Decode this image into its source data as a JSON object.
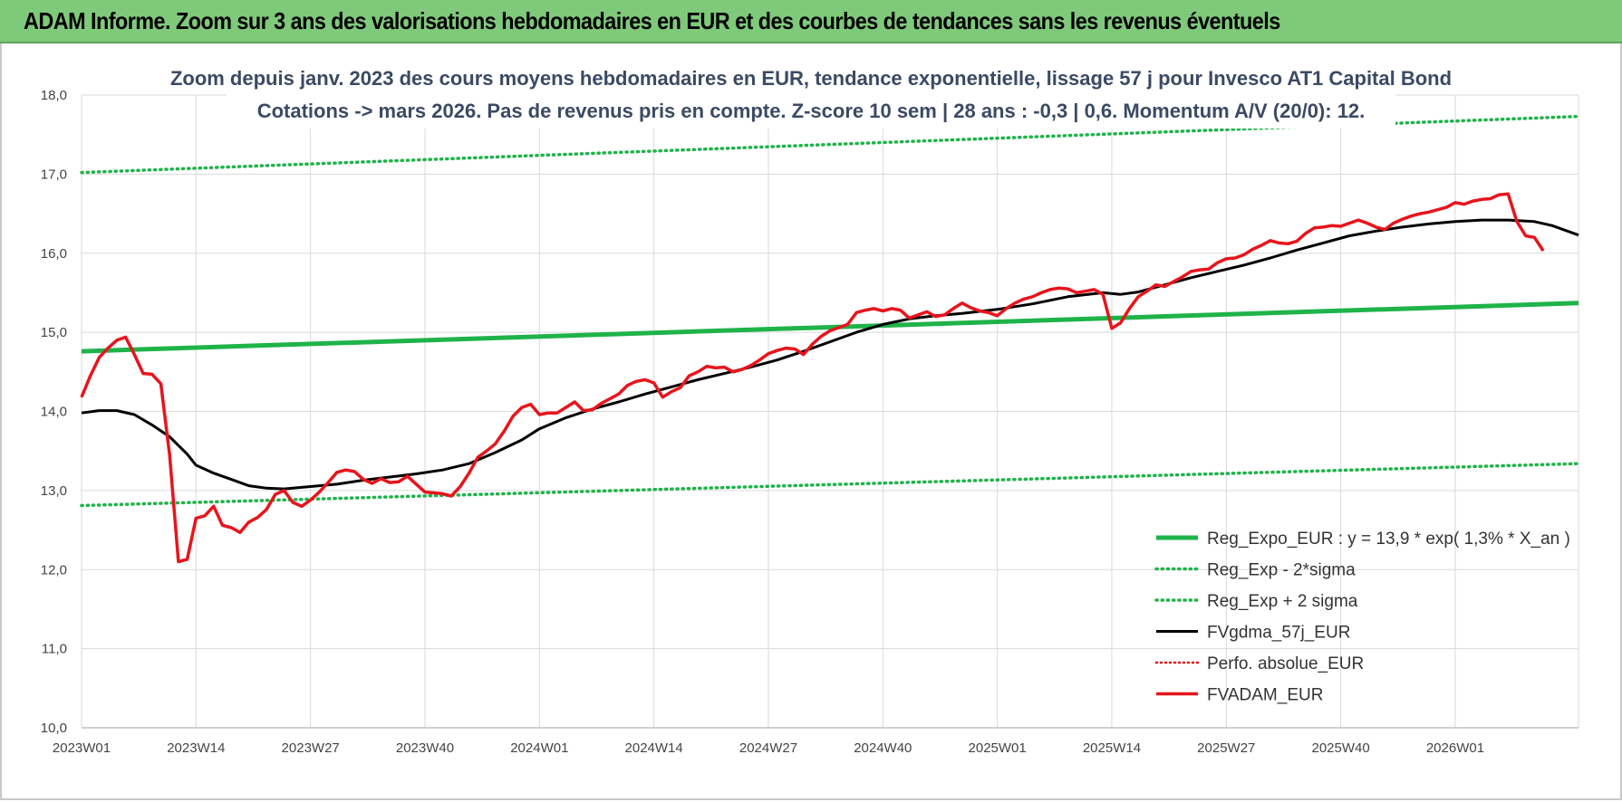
{
  "banner": {
    "title": "ADAM Informe. Zoom sur 3 ans des valorisations hebdomadaires en EUR et des courbes de tendances sans les revenus éventuels"
  },
  "colors": {
    "banner": "#7fc97a",
    "reg": "#1fb34a",
    "sigma": "#1fb34a",
    "gdma": "#000000",
    "perfo": "#e01010",
    "fvadam": "#e8141c"
  },
  "chart_data": {
    "type": "line",
    "title_line1": "Zoom depuis janv. 2023 des cours moyens hebdomadaires en EUR, tendance exponentielle, lissage 57 j pour Invesco AT1 Capital Bond",
    "title_line2": "Cotations -> mars 2026. Pas de revenus pris en compte. Z-score 10 sem | 28 ans : -0,3 | 0,6. Momentum A/V (20/0): 12.",
    "ylim": [
      10,
      18
    ],
    "yticks": [
      "10,0",
      "11,0",
      "12,0",
      "13,0",
      "14,0",
      "15,0",
      "16,0",
      "17,0",
      "18,0"
    ],
    "x_tick_labels": [
      "2023W01",
      "2023W14",
      "2023W27",
      "2023W40",
      "2024W01",
      "2024W14",
      "2024W27",
      "2024W40",
      "2025W01",
      "2025W14",
      "2025W27",
      "2025W40",
      "2026W01"
    ],
    "x_tick_index": [
      0,
      13,
      26,
      39,
      52,
      65,
      78,
      91,
      104,
      117,
      130,
      143,
      156
    ],
    "n_weeks": 171,
    "legend_position": "bottom-right",
    "series": [
      {
        "name": "Reg_Expo_EUR : y = 13,9 * exp( 1,3% *  X_an )",
        "style": "reg",
        "points": [
          [
            0,
            14.76
          ],
          [
            170,
            15.37
          ]
        ]
      },
      {
        "name": "Reg_Exp - 2*sigma",
        "style": "sigma",
        "points": [
          [
            0,
            12.81
          ],
          [
            170,
            13.34
          ]
        ]
      },
      {
        "name": "Reg_Exp + 2 sigma",
        "style": "sigma",
        "points": [
          [
            0,
            17.02
          ],
          [
            170,
            17.73
          ]
        ]
      },
      {
        "name": "FVgdma_57j_EUR",
        "style": "gdma",
        "points": [
          [
            0,
            13.98
          ],
          [
            2,
            14.01
          ],
          [
            4,
            14.01
          ],
          [
            6,
            13.96
          ],
          [
            8,
            13.83
          ],
          [
            10,
            13.68
          ],
          [
            12,
            13.46
          ],
          [
            13,
            13.32
          ],
          [
            15,
            13.22
          ],
          [
            17,
            13.14
          ],
          [
            19,
            13.06
          ],
          [
            21,
            13.03
          ],
          [
            23,
            13.02
          ],
          [
            26,
            13.05
          ],
          [
            29,
            13.08
          ],
          [
            32,
            13.13
          ],
          [
            35,
            13.17
          ],
          [
            38,
            13.21
          ],
          [
            41,
            13.26
          ],
          [
            44,
            13.34
          ],
          [
            47,
            13.48
          ],
          [
            50,
            13.64
          ],
          [
            52,
            13.78
          ],
          [
            55,
            13.92
          ],
          [
            58,
            14.03
          ],
          [
            61,
            14.12
          ],
          [
            64,
            14.22
          ],
          [
            67,
            14.31
          ],
          [
            70,
            14.4
          ],
          [
            73,
            14.48
          ],
          [
            76,
            14.56
          ],
          [
            79,
            14.65
          ],
          [
            82,
            14.76
          ],
          [
            85,
            14.88
          ],
          [
            88,
            15.0
          ],
          [
            91,
            15.1
          ],
          [
            94,
            15.17
          ],
          [
            97,
            15.21
          ],
          [
            100,
            15.24
          ],
          [
            104,
            15.29
          ],
          [
            108,
            15.36
          ],
          [
            112,
            15.45
          ],
          [
            116,
            15.5
          ],
          [
            118,
            15.48
          ],
          [
            120,
            15.51
          ],
          [
            123,
            15.6
          ],
          [
            126,
            15.69
          ],
          [
            129,
            15.77
          ],
          [
            132,
            15.85
          ],
          [
            135,
            15.94
          ],
          [
            138,
            16.04
          ],
          [
            141,
            16.13
          ],
          [
            144,
            16.22
          ],
          [
            147,
            16.28
          ],
          [
            150,
            16.33
          ],
          [
            153,
            16.37
          ],
          [
            156,
            16.4
          ],
          [
            159,
            16.42
          ],
          [
            162,
            16.42
          ],
          [
            165,
            16.4
          ],
          [
            167,
            16.35
          ],
          [
            170,
            16.23
          ]
        ]
      },
      {
        "name": "Perfo. absolue_EUR",
        "style": "perfo",
        "points": []
      },
      {
        "name": "FVADAM_EUR",
        "style": "fvadam",
        "points": [
          [
            0,
            14.18
          ],
          [
            1,
            14.45
          ],
          [
            2,
            14.68
          ],
          [
            3,
            14.8
          ],
          [
            4,
            14.9
          ],
          [
            5,
            14.94
          ],
          [
            6,
            14.72
          ],
          [
            7,
            14.48
          ],
          [
            8,
            14.47
          ],
          [
            9,
            14.35
          ],
          [
            10,
            13.45
          ],
          [
            11,
            12.1
          ],
          [
            12,
            12.13
          ],
          [
            13,
            12.65
          ],
          [
            14,
            12.68
          ],
          [
            15,
            12.8
          ],
          [
            16,
            12.56
          ],
          [
            17,
            12.53
          ],
          [
            18,
            12.47
          ],
          [
            19,
            12.6
          ],
          [
            20,
            12.66
          ],
          [
            21,
            12.76
          ],
          [
            22,
            12.95
          ],
          [
            23,
            13.0
          ],
          [
            24,
            12.85
          ],
          [
            25,
            12.8
          ],
          [
            26,
            12.88
          ],
          [
            27,
            12.98
          ],
          [
            28,
            13.1
          ],
          [
            29,
            13.23
          ],
          [
            30,
            13.26
          ],
          [
            31,
            13.24
          ],
          [
            32,
            13.14
          ],
          [
            33,
            13.09
          ],
          [
            34,
            13.15
          ],
          [
            35,
            13.1
          ],
          [
            36,
            13.11
          ],
          [
            37,
            13.18
          ],
          [
            38,
            13.08
          ],
          [
            39,
            12.98
          ],
          [
            40,
            12.97
          ],
          [
            41,
            12.96
          ],
          [
            42,
            12.93
          ],
          [
            43,
            13.05
          ],
          [
            44,
            13.22
          ],
          [
            45,
            13.42
          ],
          [
            46,
            13.5
          ],
          [
            47,
            13.59
          ],
          [
            48,
            13.75
          ],
          [
            49,
            13.94
          ],
          [
            50,
            14.05
          ],
          [
            51,
            14.09
          ],
          [
            52,
            13.96
          ],
          [
            53,
            13.98
          ],
          [
            54,
            13.98
          ],
          [
            55,
            14.05
          ],
          [
            56,
            14.12
          ],
          [
            57,
            14.01
          ],
          [
            58,
            14.02
          ],
          [
            59,
            14.1
          ],
          [
            60,
            14.16
          ],
          [
            61,
            14.22
          ],
          [
            62,
            14.33
          ],
          [
            63,
            14.38
          ],
          [
            64,
            14.4
          ],
          [
            65,
            14.36
          ],
          [
            66,
            14.18
          ],
          [
            67,
            14.25
          ],
          [
            68,
            14.3
          ],
          [
            69,
            14.45
          ],
          [
            70,
            14.5
          ],
          [
            71,
            14.57
          ],
          [
            72,
            14.55
          ],
          [
            73,
            14.56
          ],
          [
            74,
            14.5
          ],
          [
            75,
            14.53
          ],
          [
            76,
            14.58
          ],
          [
            77,
            14.65
          ],
          [
            78,
            14.73
          ],
          [
            79,
            14.77
          ],
          [
            80,
            14.8
          ],
          [
            81,
            14.79
          ],
          [
            82,
            14.72
          ],
          [
            83,
            14.85
          ],
          [
            84,
            14.95
          ],
          [
            85,
            15.02
          ],
          [
            86,
            15.06
          ],
          [
            87,
            15.1
          ],
          [
            88,
            15.25
          ],
          [
            89,
            15.28
          ],
          [
            90,
            15.3
          ],
          [
            91,
            15.27
          ],
          [
            92,
            15.3
          ],
          [
            93,
            15.28
          ],
          [
            94,
            15.18
          ],
          [
            95,
            15.22
          ],
          [
            96,
            15.26
          ],
          [
            97,
            15.2
          ],
          [
            98,
            15.22
          ],
          [
            99,
            15.3
          ],
          [
            100,
            15.37
          ],
          [
            101,
            15.31
          ],
          [
            102,
            15.27
          ],
          [
            103,
            15.25
          ],
          [
            104,
            15.21
          ],
          [
            105,
            15.3
          ],
          [
            106,
            15.37
          ],
          [
            107,
            15.42
          ],
          [
            108,
            15.45
          ],
          [
            109,
            15.5
          ],
          [
            110,
            15.54
          ],
          [
            111,
            15.56
          ],
          [
            112,
            15.55
          ],
          [
            113,
            15.5
          ],
          [
            114,
            15.52
          ],
          [
            115,
            15.54
          ],
          [
            116,
            15.48
          ],
          [
            117,
            15.05
          ],
          [
            118,
            15.12
          ],
          [
            119,
            15.3
          ],
          [
            120,
            15.45
          ],
          [
            121,
            15.52
          ],
          [
            122,
            15.6
          ],
          [
            123,
            15.58
          ],
          [
            124,
            15.64
          ],
          [
            125,
            15.7
          ],
          [
            126,
            15.77
          ],
          [
            127,
            15.79
          ],
          [
            128,
            15.8
          ],
          [
            129,
            15.88
          ],
          [
            130,
            15.93
          ],
          [
            131,
            15.94
          ],
          [
            132,
            15.98
          ],
          [
            133,
            16.05
          ],
          [
            134,
            16.1
          ],
          [
            135,
            16.16
          ],
          [
            136,
            16.13
          ],
          [
            137,
            16.12
          ],
          [
            138,
            16.15
          ],
          [
            139,
            16.25
          ],
          [
            140,
            16.32
          ],
          [
            141,
            16.33
          ],
          [
            142,
            16.35
          ],
          [
            143,
            16.34
          ],
          [
            144,
            16.38
          ],
          [
            145,
            16.42
          ],
          [
            146,
            16.38
          ],
          [
            147,
            16.33
          ],
          [
            148,
            16.3
          ],
          [
            149,
            16.38
          ],
          [
            150,
            16.43
          ],
          [
            151,
            16.47
          ],
          [
            152,
            16.5
          ],
          [
            153,
            16.52
          ],
          [
            154,
            16.55
          ],
          [
            155,
            16.58
          ],
          [
            156,
            16.64
          ],
          [
            157,
            16.62
          ],
          [
            158,
            16.66
          ],
          [
            159,
            16.68
          ],
          [
            160,
            16.69
          ],
          [
            161,
            16.74
          ],
          [
            162,
            16.75
          ],
          [
            163,
            16.4
          ],
          [
            164,
            16.22
          ],
          [
            165,
            16.2
          ],
          [
            166,
            16.03
          ]
        ]
      }
    ]
  }
}
